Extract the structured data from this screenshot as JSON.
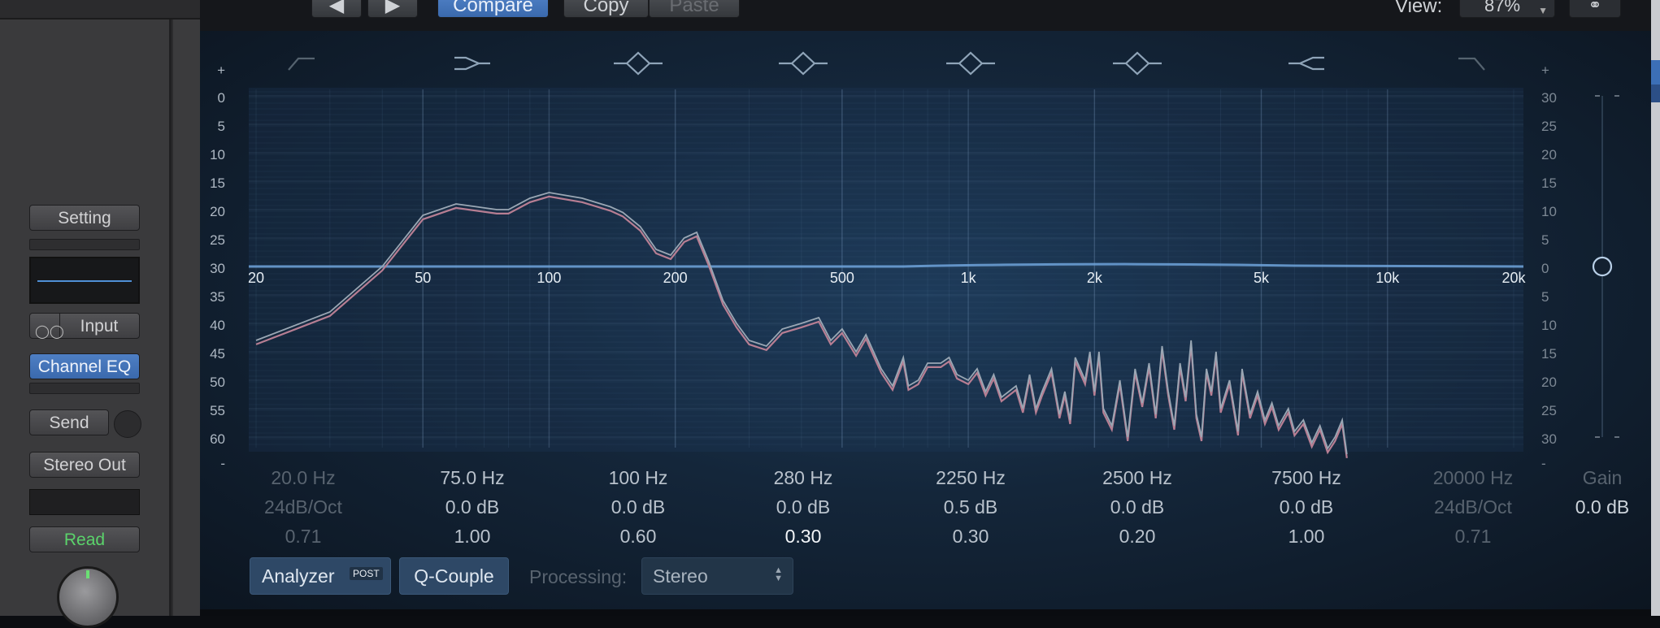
{
  "header": {
    "compare_label": "Compare",
    "copy_label": "Copy",
    "paste_label": "Paste",
    "view_label": "View:",
    "zoom_value": "87%",
    "prev_icon": "◀",
    "next_icon": "▶"
  },
  "strip": {
    "setting_label": "Setting",
    "input_label": "Input",
    "plugin_label": "Channel EQ",
    "send_label": "Send",
    "output_label": "Stereo Out",
    "automation_label": "Read"
  },
  "eq": {
    "freq_labels": [
      "20",
      "50",
      "100",
      "200",
      "500",
      "1k",
      "2k",
      "5k",
      "10k",
      "20k"
    ],
    "left_scale": [
      "+",
      "0",
      "5",
      "10",
      "15",
      "20",
      "25",
      "30",
      "35",
      "40",
      "45",
      "50",
      "55",
      "60",
      "-"
    ],
    "right_scale": [
      "+",
      "30",
      "25",
      "20",
      "15",
      "10",
      "5",
      "0",
      "5",
      "10",
      "15",
      "20",
      "25",
      "30",
      "-"
    ],
    "bands": [
      {
        "freq": "20.0 Hz",
        "gain": "24dB/Oct",
        "q": "0.71",
        "enabled": false
      },
      {
        "freq": "75.0 Hz",
        "gain": "0.0 dB",
        "q": "1.00",
        "enabled": true
      },
      {
        "freq": "100 Hz",
        "gain": "0.0 dB",
        "q": "0.60",
        "enabled": true
      },
      {
        "freq": "280 Hz",
        "gain": "0.0 dB",
        "q": "0.30",
        "enabled": true,
        "selected": true
      },
      {
        "freq": "2250 Hz",
        "gain": "0.5 dB",
        "q": "0.30",
        "enabled": true
      },
      {
        "freq": "2500 Hz",
        "gain": "0.0 dB",
        "q": "0.20",
        "enabled": true
      },
      {
        "freq": "7500 Hz",
        "gain": "0.0 dB",
        "q": "1.00",
        "enabled": true
      },
      {
        "freq": "20000 Hz",
        "gain": "24dB/Oct",
        "q": "0.71",
        "enabled": false
      }
    ],
    "gain_label": "Gain",
    "gain_value": "0.0 dB"
  },
  "controls": {
    "analyzer_label": "Analyzer",
    "analyzer_mode": "POST",
    "qcouple_label": "Q-Couple",
    "processing_label": "Processing:",
    "processing_value": "Stereo"
  },
  "colors": {
    "accent": "#4a7dc4",
    "curve": "#6fa3da",
    "analyzer_pre": "#b77e93",
    "analyzer_post": "#9aa7b4"
  }
}
